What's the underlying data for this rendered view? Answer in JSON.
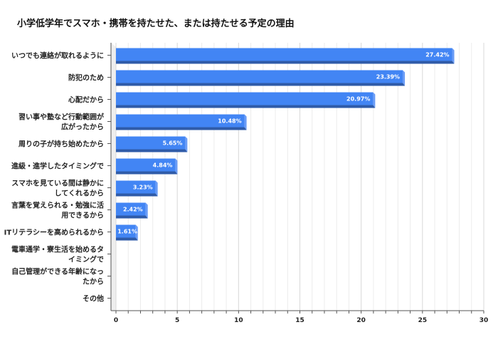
{
  "chart_data": {
    "type": "bar",
    "orientation": "horizontal",
    "title": "小学低学年でスマホ・携帯を持たせた、または持たせる予定の理由",
    "categories": [
      [
        "いつでも連絡が取れるように"
      ],
      [
        "防犯のため"
      ],
      [
        "心配だから"
      ],
      [
        "習い事や塾など行動範囲が",
        "広がったから"
      ],
      [
        "周りの子が持ち始めたから"
      ],
      [
        "進級・進学したタイミングで"
      ],
      [
        "スマホを見ている間は静かに",
        "してくれるから"
      ],
      [
        "言葉を覚えられる・勉強に活",
        "用できるから"
      ],
      [
        "ITリテラシーを高められるから"
      ],
      [
        "電車通学・寮生活を始めるタ",
        "イミングで"
      ],
      [
        "自己管理ができる年齢になっ",
        "たから"
      ],
      [
        "その他"
      ]
    ],
    "values": [
      27.42,
      23.39,
      20.97,
      10.48,
      5.65,
      4.84,
      3.23,
      2.42,
      1.61,
      0,
      0,
      0
    ],
    "data_labels": [
      "27.42%",
      "23.39%",
      "20.97%",
      "10.48%",
      "5.65%",
      "4.84%",
      "3.23%",
      "2.42%",
      "1.61%",
      "",
      "",
      ""
    ],
    "xlim": [
      0,
      30
    ],
    "xticks": [
      "0",
      "5",
      "10",
      "15",
      "20",
      "25",
      "30"
    ],
    "grid": true,
    "style": "3d",
    "colors": {
      "bar": "#4285f4",
      "bar_bottom": "#2f5ba8",
      "bar_side": "#6a9cf6"
    }
  }
}
